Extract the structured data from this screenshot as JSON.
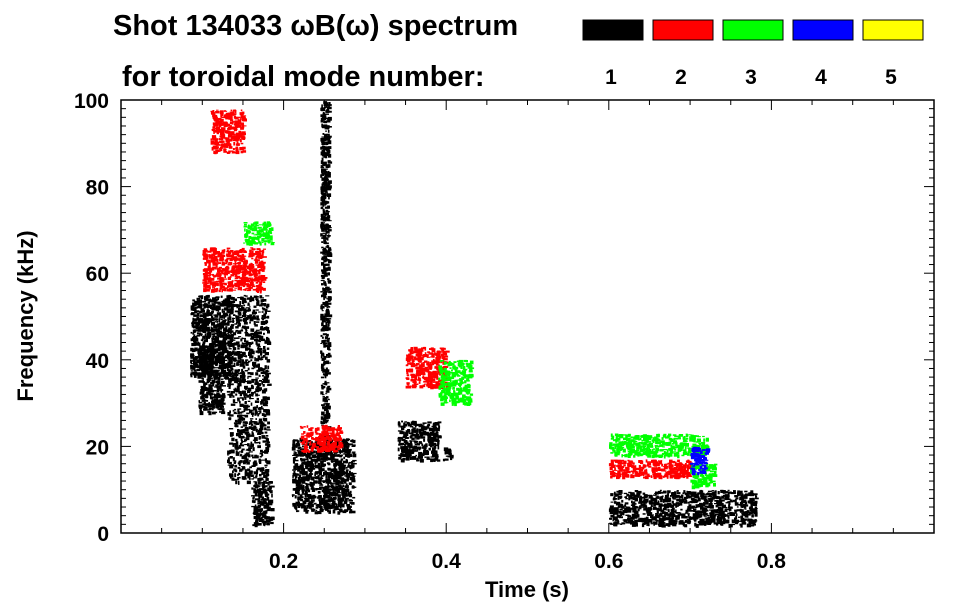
{
  "chart_data": {
    "type": "heatmap",
    "title_line1": "Shot 134033 ωB(ω) spectrum",
    "title_line2": "for toroidal mode number:",
    "xlabel": "Time (s)",
    "ylabel": "Frequency (kHz)",
    "xlim": [
      0.0,
      1.0
    ],
    "ylim": [
      0,
      100
    ],
    "x_tick_labels": [
      {
        "value": 0.2,
        "label": "0.2"
      },
      {
        "value": 0.4,
        "label": "0.4"
      },
      {
        "value": 0.6,
        "label": "0.6"
      },
      {
        "value": 0.8,
        "label": "0.8"
      }
    ],
    "y_tick_labels": [
      {
        "value": 0,
        "label": "0"
      },
      {
        "value": 20,
        "label": "20"
      },
      {
        "value": 40,
        "label": "40"
      },
      {
        "value": 60,
        "label": "60"
      },
      {
        "value": 80,
        "label": "80"
      },
      {
        "value": 100,
        "label": "100"
      }
    ],
    "legend": [
      {
        "mode": "1",
        "color": "#000000"
      },
      {
        "mode": "2",
        "color": "#ff0000"
      },
      {
        "mode": "3",
        "color": "#00ff00"
      },
      {
        "mode": "4",
        "color": "#0000ff"
      },
      {
        "mode": "5",
        "color": "#ffff00"
      }
    ],
    "series": [
      {
        "name": "n=1",
        "color": "#000000",
        "regions": [
          {
            "t": [
              0.085,
              0.135
            ],
            "f": [
              36,
              55
            ]
          },
          {
            "t": [
              0.095,
              0.125
            ],
            "f": [
              28,
              42
            ]
          },
          {
            "t": [
              0.13,
              0.18
            ],
            "f": [
              12,
              55
            ]
          },
          {
            "t": [
              0.16,
              0.185
            ],
            "f": [
              2,
              12
            ]
          },
          {
            "t": [
              0.21,
              0.285
            ],
            "f": [
              5,
              22
            ]
          },
          {
            "t": [
              0.245,
              0.255
            ],
            "f": [
              22,
              100
            ]
          },
          {
            "t": [
              0.34,
              0.39
            ],
            "f": [
              17,
              26
            ]
          },
          {
            "t": [
              0.6,
              0.78
            ],
            "f": [
              2,
              10
            ]
          },
          {
            "t": [
              0.395,
              0.405
            ],
            "f": [
              17,
              20
            ]
          }
        ]
      },
      {
        "name": "n=2",
        "color": "#ff0000",
        "regions": [
          {
            "t": [
              0.1,
              0.175
            ],
            "f": [
              56,
              66
            ]
          },
          {
            "t": [
              0.22,
              0.27
            ],
            "f": [
              19,
              25
            ]
          },
          {
            "t": [
              0.35,
              0.4
            ],
            "f": [
              34,
              43
            ]
          },
          {
            "t": [
              0.6,
              0.7
            ],
            "f": [
              13,
              17
            ]
          },
          {
            "t": [
              0.11,
              0.15
            ],
            "f": [
              88,
              98
            ]
          }
        ]
      },
      {
        "name": "n=3",
        "color": "#00ff00",
        "regions": [
          {
            "t": [
              0.15,
              0.185
            ],
            "f": [
              67,
              72
            ]
          },
          {
            "t": [
              0.39,
              0.43
            ],
            "f": [
              30,
              40
            ]
          },
          {
            "t": [
              0.6,
              0.72
            ],
            "f": [
              18,
              23
            ]
          },
          {
            "t": [
              0.7,
              0.73
            ],
            "f": [
              11,
              16
            ]
          }
        ]
      },
      {
        "name": "n=4",
        "color": "#0000ff",
        "regions": [
          {
            "t": [
              0.7,
              0.72
            ],
            "f": [
              14,
              20
            ]
          }
        ]
      }
    ]
  }
}
